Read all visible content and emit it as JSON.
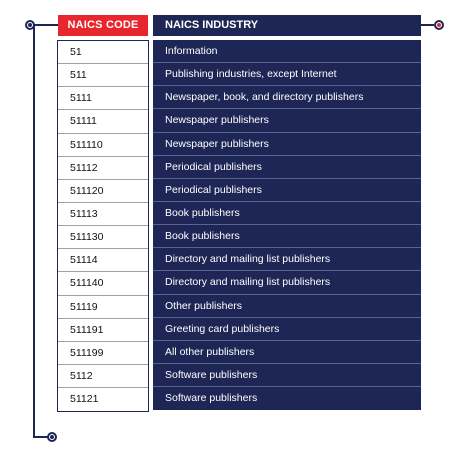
{
  "header": {
    "code_label": "NAICS CODE",
    "industry_label": "NAICS INDUSTRY"
  },
  "rows": [
    {
      "code": "51",
      "industry": "Information"
    },
    {
      "code": "511",
      "industry": "Publishing industries, except Internet"
    },
    {
      "code": "5111",
      "industry": "Newspaper, book, and directory publishers"
    },
    {
      "code": "51111",
      "industry": "Newspaper publishers"
    },
    {
      "code": "511110",
      "industry": "Newspaper publishers"
    },
    {
      "code": "51112",
      "industry": "Periodical publishers"
    },
    {
      "code": "511120",
      "industry": "Periodical publishers"
    },
    {
      "code": "51113",
      "industry": "Book publishers"
    },
    {
      "code": "511130",
      "industry": "Book publishers"
    },
    {
      "code": "51114",
      "industry": "Directory and mailing list publishers"
    },
    {
      "code": "511140",
      "industry": "Directory and mailing list publishers"
    },
    {
      "code": "51119",
      "industry": "Other publishers"
    },
    {
      "code": "511191",
      "industry": "Greeting card publishers"
    },
    {
      "code": "511199",
      "industry": "All other publishers"
    },
    {
      "code": "5112",
      "industry": "Software publishers"
    },
    {
      "code": "51121",
      "industry": "Software publishers"
    }
  ],
  "colors": {
    "navy": "#1e2656",
    "red": "#e8262e"
  }
}
